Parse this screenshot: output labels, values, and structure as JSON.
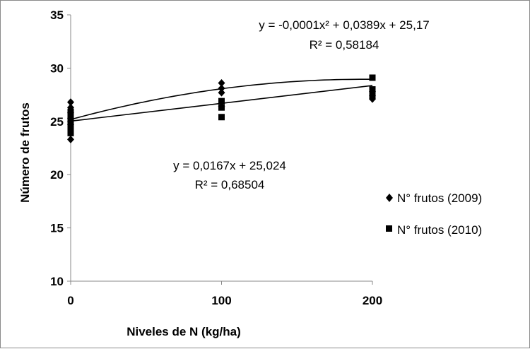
{
  "chart_data": {
    "type": "scatter",
    "title": "",
    "xlabel": "Niveles de N (kg/ha)",
    "ylabel": "Número de frutos",
    "xlim": [
      0,
      200
    ],
    "ylim": [
      10,
      35
    ],
    "x_ticks": [
      "0",
      "100",
      "200"
    ],
    "y_ticks": [
      "10",
      "15",
      "20",
      "25",
      "30",
      "35"
    ],
    "grid": false,
    "legend_position": "right",
    "series": [
      {
        "name": "N° frutos (2009)",
        "marker": "diamond",
        "color": "#000000",
        "points": [
          [
            0,
            26.8
          ],
          [
            0,
            26.3
          ],
          [
            0,
            25.8
          ],
          [
            0,
            25.3
          ],
          [
            0,
            24.7
          ],
          [
            0,
            23.3
          ],
          [
            100,
            28.6
          ],
          [
            100,
            28.1
          ],
          [
            100,
            27.7
          ],
          [
            100,
            26.4
          ],
          [
            200,
            27.8
          ],
          [
            200,
            27.4
          ],
          [
            200,
            27.1
          ]
        ],
        "trendline": {
          "kind": "polynomial-2",
          "coefficients": {
            "a": -0.0001,
            "b": 0.0389,
            "c": 25.17
          },
          "equation": "y = -0,0001x² + 0,0389x + 25,17",
          "r2": "R² = 0,58184"
        }
      },
      {
        "name": "N° frutos (2010)",
        "marker": "square",
        "color": "#000000",
        "points": [
          [
            0,
            25.9
          ],
          [
            0,
            25.6
          ],
          [
            0,
            25.1
          ],
          [
            0,
            24.8
          ],
          [
            0,
            24.3
          ],
          [
            0,
            23.9
          ],
          [
            100,
            26.9
          ],
          [
            100,
            26.3
          ],
          [
            100,
            25.4
          ],
          [
            200,
            29.1
          ],
          [
            200,
            28.0
          ],
          [
            200,
            27.7
          ],
          [
            200,
            27.4
          ]
        ],
        "trendline": {
          "kind": "linear",
          "coefficients": {
            "slope": 0.0167,
            "intercept": 25.024
          },
          "equation": "y = 0,0167x + 25,024",
          "r2": "R² = 0,68504"
        }
      }
    ]
  }
}
